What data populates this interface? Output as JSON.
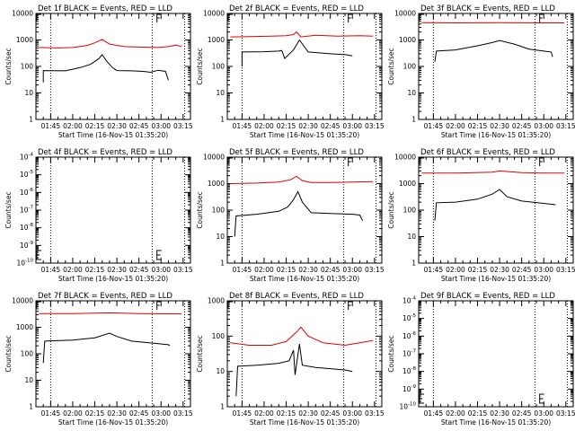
{
  "chart_data": [
    {
      "type": "line",
      "detector": "1f",
      "title": "Det 1f BLACK = Events, RED = LLD",
      "xlabel": "Start Time (16-Nov-15 01:35:20)",
      "ylabel": "Counts/sec",
      "yscale": "log",
      "ylim": [
        1,
        10000
      ],
      "yticks": [
        "1",
        "10",
        "100",
        "1000",
        "10000"
      ],
      "xlim": [
        "01:35",
        "03:20"
      ],
      "xticks": [
        "01:45",
        "02:00",
        "02:15",
        "02:30",
        "02:45",
        "03:00",
        "03:15"
      ],
      "vlines": [
        "01:45",
        "02:54",
        "03:16"
      ],
      "series": [
        {
          "name": "LLD",
          "color": "#e00000",
          "t": [
            "01:37",
            "01:50",
            "02:00",
            "02:10",
            "02:15",
            "02:20",
            "02:25",
            "02:35",
            "02:45",
            "02:58",
            "03:05",
            "03:10",
            "03:14"
          ],
          "v": [
            520,
            500,
            520,
            620,
            780,
            1050,
            700,
            560,
            540,
            520,
            560,
            640,
            560
          ]
        },
        {
          "name": "Events",
          "color": "#000000",
          "t": [
            "01:40",
            "01:40",
            "01:55",
            "02:05",
            "02:12",
            "02:18",
            "02:20",
            "02:23",
            "02:27",
            "02:30",
            "02:40",
            "02:48",
            "02:53",
            "02:58",
            "03:03",
            "03:05"
          ],
          "v": [
            25,
            70,
            68,
            90,
            120,
            200,
            280,
            160,
            90,
            70,
            68,
            65,
            60,
            72,
            65,
            30
          ]
        }
      ]
    },
    {
      "type": "line",
      "detector": "2f",
      "title": "Det 2f BLACK = Events, RED = LLD",
      "xlabel": "Start Time (16-Nov-15 01:35:20)",
      "ylabel": "Counts/sec",
      "yscale": "log",
      "ylim": [
        1,
        10000
      ],
      "yticks": [
        "1",
        "10",
        "100",
        "1000",
        "10000"
      ],
      "xlim": [
        "01:35",
        "03:20"
      ],
      "xticks": [
        "01:45",
        "02:00",
        "02:15",
        "02:30",
        "02:45",
        "03:00",
        "03:15"
      ],
      "vlines": [
        "01:45",
        "02:54",
        "03:16"
      ],
      "series": [
        {
          "name": "LLD",
          "color": "#e00000",
          "t": [
            "01:37",
            "01:50",
            "02:05",
            "02:15",
            "02:20",
            "02:22",
            "02:25",
            "02:35",
            "02:50",
            "03:05",
            "03:14"
          ],
          "v": [
            1300,
            1350,
            1400,
            1450,
            1600,
            2000,
            1300,
            1500,
            1400,
            1450,
            1400
          ]
        },
        {
          "name": "Events",
          "color": "#000000",
          "t": [
            "01:45",
            "01:45",
            "02:00",
            "02:10",
            "02:12",
            "02:14",
            "02:20",
            "02:24",
            "02:30",
            "02:45",
            "02:55",
            "03:00"
          ],
          "v": [
            100,
            350,
            360,
            380,
            400,
            200,
            420,
            1000,
            350,
            300,
            280,
            250
          ]
        }
      ]
    },
    {
      "type": "line",
      "detector": "3f",
      "title": "Det 3f BLACK = Events, RED = LLD",
      "xlabel": "Start Time (16-Nov-15 01:35:20)",
      "ylabel": "Counts/sec",
      "yscale": "log",
      "ylim": [
        1,
        10000
      ],
      "yticks": [
        "1",
        "10",
        "100",
        "1000",
        "10000"
      ],
      "xlim": [
        "01:35",
        "03:20"
      ],
      "xticks": [
        "01:45",
        "02:00",
        "02:15",
        "02:30",
        "02:45",
        "03:00",
        "03:15"
      ],
      "vlines": [
        "01:45",
        "02:54",
        "03:16"
      ],
      "series": [
        {
          "name": "LLD",
          "color": "#e00000",
          "t": [
            "01:37",
            "02:00",
            "02:30",
            "03:00",
            "03:14"
          ],
          "v": [
            4500,
            4400,
            4500,
            4400,
            4400
          ]
        },
        {
          "name": "Events",
          "color": "#000000",
          "t": [
            "01:46",
            "01:47",
            "02:00",
            "02:15",
            "02:25",
            "02:30",
            "02:40",
            "02:50",
            "03:00",
            "03:05",
            "03:06"
          ],
          "v": [
            150,
            380,
            420,
            600,
            800,
            950,
            700,
            450,
            380,
            350,
            230
          ]
        }
      ]
    },
    {
      "type": "line",
      "detector": "4f",
      "title": "Det 4f BLACK = Events, RED = LLD",
      "xlabel": "Start Time (16-Nov-15 01:35:20)",
      "ylabel": "Counts/sec",
      "yscale": "log",
      "ylim": [
        1e-10,
        0.0001
      ],
      "yticks": [
        "10^-10",
        "10^-9",
        "10^-8",
        "10^-7",
        "10^-6",
        "10^-5",
        "10^-4"
      ],
      "xlim": [
        "01:35",
        "03:20"
      ],
      "xticks": [
        "01:45",
        "02:00",
        "02:15",
        "02:30",
        "02:45",
        "03:00",
        "03:15"
      ],
      "vlines": [
        "01:45",
        "02:54",
        "03:16"
      ],
      "series": [
        {
          "name": "LLD",
          "color": "#e00000",
          "t": [],
          "v": []
        },
        {
          "name": "Events",
          "color": "#000000",
          "t": [],
          "v": []
        }
      ]
    },
    {
      "type": "line",
      "detector": "5f",
      "title": "Det 5f BLACK = Events, RED = LLD",
      "xlabel": "Start Time (16-Nov-15 01:35:20)",
      "ylabel": "Counts/sec",
      "yscale": "log",
      "ylim": [
        1,
        10000
      ],
      "yticks": [
        "1",
        "10",
        "100",
        "1000",
        "10000"
      ],
      "xlim": [
        "01:35",
        "03:20"
      ],
      "xticks": [
        "01:45",
        "02:00",
        "02:15",
        "02:30",
        "02:45",
        "03:00",
        "03:15"
      ],
      "vlines": [
        "01:45",
        "02:54",
        "03:16"
      ],
      "series": [
        {
          "name": "LLD",
          "color": "#e00000",
          "t": [
            "01:37",
            "01:55",
            "02:10",
            "02:18",
            "02:22",
            "02:26",
            "02:32",
            "02:45",
            "03:00",
            "03:14"
          ],
          "v": [
            1000,
            1050,
            1150,
            1400,
            1900,
            1300,
            1100,
            1100,
            1150,
            1200
          ]
        },
        {
          "name": "Events",
          "color": "#000000",
          "t": [
            "01:40",
            "01:41",
            "01:55",
            "02:10",
            "02:16",
            "02:20",
            "02:23",
            "02:26",
            "02:32",
            "02:45",
            "03:00",
            "03:05",
            "03:07"
          ],
          "v": [
            10,
            60,
            70,
            90,
            130,
            250,
            500,
            200,
            80,
            75,
            70,
            65,
            40
          ]
        }
      ]
    },
    {
      "type": "line",
      "detector": "6f",
      "title": "Det 6f BLACK = Events, RED = LLD",
      "xlabel": "Start Time (16-Nov-15 01:35:20)",
      "ylabel": "Counts/sec",
      "yscale": "log",
      "ylim": [
        1,
        10000
      ],
      "yticks": [
        "1",
        "10",
        "100",
        "1000",
        "10000"
      ],
      "xlim": [
        "01:35",
        "03:20"
      ],
      "xticks": [
        "01:45",
        "02:00",
        "02:15",
        "02:30",
        "02:45",
        "03:00",
        "03:15"
      ],
      "vlines": [
        "01:45",
        "02:54",
        "03:16"
      ],
      "series": [
        {
          "name": "LLD",
          "color": "#e00000",
          "t": [
            "01:37",
            "02:00",
            "02:25",
            "02:30",
            "02:45",
            "03:00",
            "03:14"
          ],
          "v": [
            2500,
            2500,
            2700,
            3000,
            2600,
            2500,
            2500
          ]
        },
        {
          "name": "Events",
          "color": "#000000",
          "t": [
            "01:46",
            "01:47",
            "02:00",
            "02:15",
            "02:25",
            "02:30",
            "02:35",
            "02:45",
            "03:00",
            "03:08"
          ],
          "v": [
            40,
            190,
            200,
            260,
            400,
            600,
            320,
            220,
            180,
            160
          ]
        }
      ]
    },
    {
      "type": "line",
      "detector": "7f",
      "title": "Det 7f BLACK = Events, RED = LLD",
      "xlabel": "Start Time (16-Nov-15 01:35:20)",
      "ylabel": "Counts/sec",
      "yscale": "log",
      "ylim": [
        1,
        10000
      ],
      "yticks": [
        "1",
        "10",
        "100",
        "1000",
        "10000"
      ],
      "xlim": [
        "01:35",
        "03:20"
      ],
      "xticks": [
        "01:45",
        "02:00",
        "02:15",
        "02:30",
        "02:45",
        "03:00",
        "03:15"
      ],
      "vlines": [
        "01:45",
        "02:54",
        "03:16"
      ],
      "series": [
        {
          "name": "LLD",
          "color": "#e00000",
          "t": [
            "01:37",
            "02:00",
            "02:25",
            "02:45",
            "03:14"
          ],
          "v": [
            3300,
            3300,
            3500,
            3300,
            3200
          ]
        },
        {
          "name": "Events",
          "color": "#000000",
          "t": [
            "01:40",
            "01:41",
            "02:00",
            "02:15",
            "02:25",
            "02:30",
            "02:40",
            "02:55",
            "03:05",
            "03:06"
          ],
          "v": [
            45,
            300,
            330,
            400,
            600,
            450,
            300,
            250,
            220,
            200
          ]
        }
      ]
    },
    {
      "type": "line",
      "detector": "8f",
      "title": "Det 8f BLACK = Events, RED = LLD",
      "xlabel": "Start Time (16-Nov-15 01:35:20)",
      "ylabel": "Counts/sec",
      "yscale": "log",
      "ylim": [
        1,
        1000
      ],
      "yticks": [
        "1",
        "10",
        "100",
        "1000"
      ],
      "xlim": [
        "01:35",
        "03:20"
      ],
      "xticks": [
        "01:45",
        "02:00",
        "02:15",
        "02:30",
        "02:45",
        "03:00",
        "03:15"
      ],
      "vlines": [
        "01:45",
        "02:54",
        "03:16"
      ],
      "series": [
        {
          "name": "LLD",
          "color": "#e00000",
          "t": [
            "01:37",
            "01:50",
            "02:05",
            "02:15",
            "02:22",
            "02:25",
            "02:30",
            "02:40",
            "02:55",
            "03:05",
            "03:14"
          ],
          "v": [
            65,
            55,
            55,
            70,
            130,
            180,
            100,
            65,
            55,
            65,
            75
          ]
        },
        {
          "name": "Events",
          "color": "#000000",
          "t": [
            "01:41",
            "01:42",
            "01:55",
            "02:10",
            "02:17",
            "02:20",
            "02:21",
            "02:24",
            "02:26",
            "02:35",
            "02:45",
            "02:55",
            "03:00"
          ],
          "v": [
            2,
            14,
            15,
            17,
            20,
            40,
            8,
            60,
            15,
            13,
            12,
            11,
            10
          ]
        }
      ]
    },
    {
      "type": "line",
      "detector": "9f",
      "title": "Det 9f BLACK = Events, RED = LLD",
      "xlabel": "Start Time (16-Nov-15 01:35:20)",
      "ylabel": "Counts/sec",
      "yscale": "log",
      "ylim": [
        1e-10,
        0.0001
      ],
      "yticks": [
        "10^-10",
        "10^-9",
        "10^-8",
        "10^-7",
        "10^-6",
        "10^-5",
        "10^-4"
      ],
      "xlim": [
        "01:35",
        "03:20"
      ],
      "xticks": [
        "01:45",
        "02:00",
        "02:15",
        "02:30",
        "02:45",
        "03:00",
        "03:15"
      ],
      "vlines": [
        "01:45",
        "02:54",
        "03:16"
      ],
      "series": [
        {
          "name": "LLD",
          "color": "#e00000",
          "t": [],
          "v": []
        },
        {
          "name": "Events",
          "color": "#000000",
          "t": [],
          "v": []
        }
      ]
    }
  ]
}
